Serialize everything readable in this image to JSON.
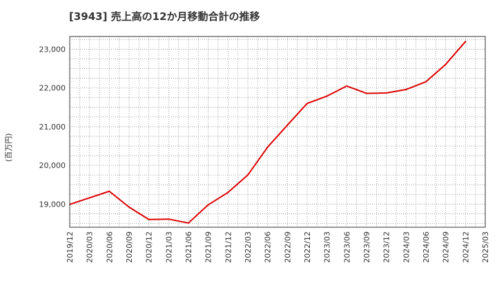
{
  "chart_data": {
    "type": "line",
    "title": "[3943]  売上高の12か月移動合計の推移",
    "ylabel": "(百万円)",
    "xlabel": "",
    "x": [
      "2019/12",
      "2020/03",
      "2020/06",
      "2020/09",
      "2020/12",
      "2021/03",
      "2021/06",
      "2021/09",
      "2021/12",
      "2022/03",
      "2022/06",
      "2022/09",
      "2022/12",
      "2023/03",
      "2023/06",
      "2023/09",
      "2023/12",
      "2024/03",
      "2024/06",
      "2024/09",
      "2024/12"
    ],
    "x_ticks": [
      "2019/12",
      "2020/03",
      "2020/06",
      "2020/09",
      "2020/12",
      "2021/03",
      "2021/06",
      "2021/09",
      "2021/12",
      "2022/03",
      "2022/06",
      "2022/09",
      "2022/12",
      "2023/03",
      "2023/06",
      "2023/09",
      "2023/12",
      "2024/03",
      "2024/06",
      "2024/09",
      "2024/12",
      "2025/03"
    ],
    "y_ticks": [
      19000,
      20000,
      21000,
      22000,
      23000
    ],
    "y_tick_labels": [
      "19,000",
      "20,000",
      "21,000",
      "22,000",
      "23,000"
    ],
    "ylim": [
      18400,
      23330
    ],
    "grid": true,
    "series": [
      {
        "name": "売上高",
        "color": "#dd0000",
        "values": [
          18990,
          19160,
          19330,
          18920,
          18600,
          18610,
          18510,
          18980,
          19300,
          19750,
          20470,
          21040,
          21600,
          21790,
          22050,
          21860,
          21870,
          21960,
          22160,
          22610,
          23200
        ]
      }
    ]
  }
}
